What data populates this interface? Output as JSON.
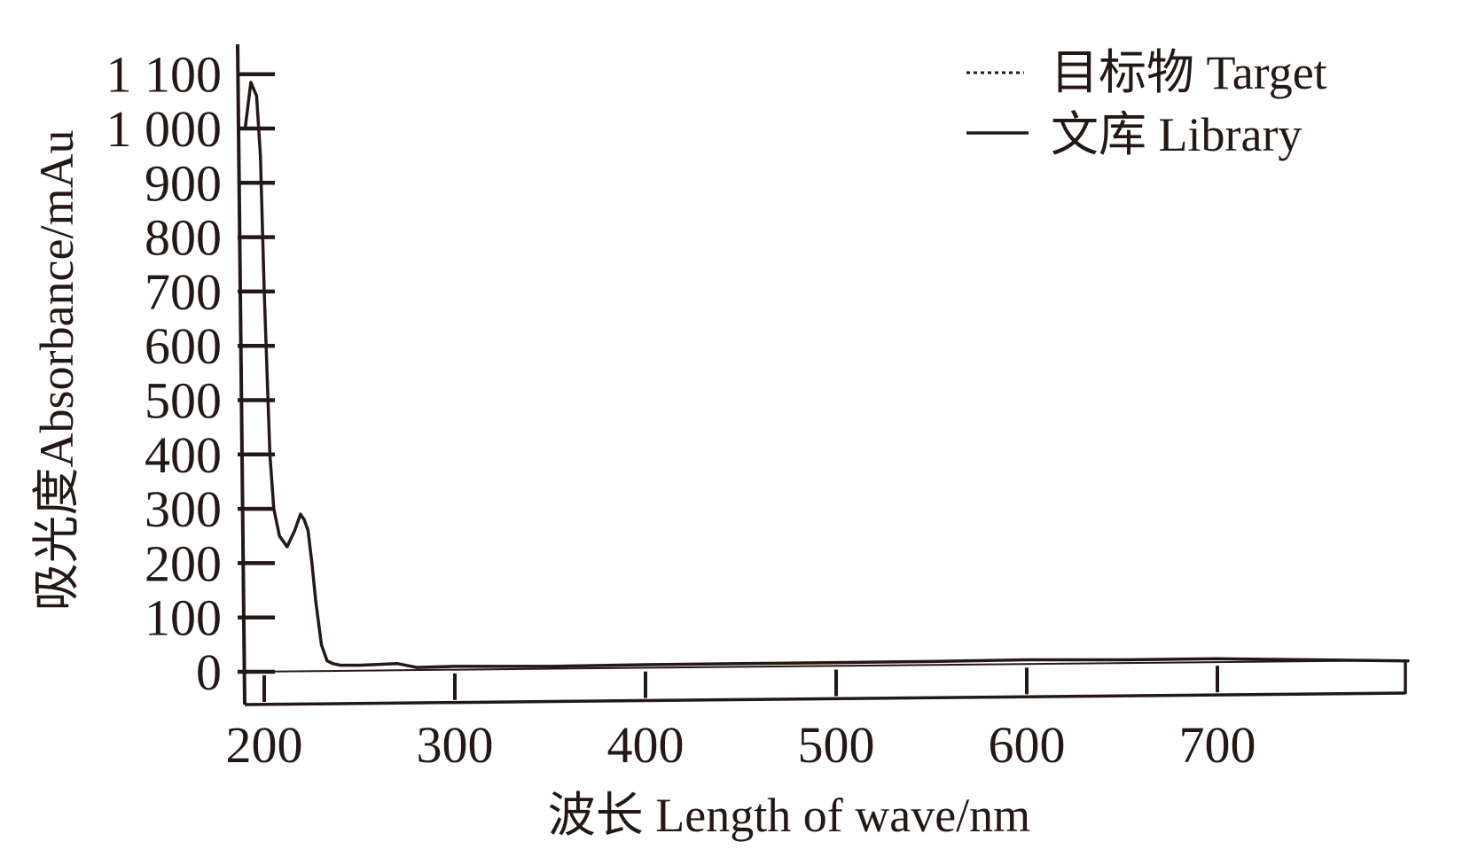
{
  "chart_data": {
    "type": "line",
    "xlabel": "波长 Length of wave/nm",
    "ylabel": "吸光度Absorbance/mAu",
    "xlim": [
      190,
      800
    ],
    "ylim": [
      -50,
      1150
    ],
    "x_ticks": [
      "200",
      "300",
      "400",
      "500",
      "600",
      "700"
    ],
    "y_ticks": [
      "0",
      "100",
      "200",
      "300",
      "400",
      "500",
      "600",
      "700",
      "800",
      "900",
      "1 000",
      "1 100"
    ],
    "legend_position": "top-right",
    "series": [
      {
        "name": "目标物 Target",
        "style": "dotted",
        "color": "#231815",
        "x": [
          190,
          193,
          196,
          198,
          200,
          203,
          205,
          208,
          212,
          216,
          219,
          221,
          223,
          225,
          227,
          230,
          233,
          236,
          240,
          250,
          270,
          280,
          300,
          350,
          400,
          450,
          500,
          550,
          600,
          650,
          700,
          750,
          800
        ],
        "y": [
          1000,
          1085,
          1060,
          950,
          700,
          400,
          300,
          250,
          230,
          260,
          290,
          280,
          260,
          200,
          130,
          50,
          20,
          15,
          12,
          12,
          15,
          8,
          10,
          10,
          13,
          15,
          17,
          19,
          22,
          22,
          24,
          22,
          20
        ]
      },
      {
        "name": "文库 Library",
        "style": "solid",
        "color": "#231815",
        "x": [
          190,
          193,
          196,
          198,
          200,
          203,
          205,
          208,
          212,
          216,
          219,
          221,
          223,
          225,
          227,
          230,
          233,
          236,
          240,
          250,
          270,
          280,
          300,
          350,
          400,
          450,
          500,
          550,
          600,
          650,
          700,
          750,
          800
        ],
        "y": [
          1000,
          1085,
          1060,
          950,
          700,
          400,
          300,
          250,
          230,
          260,
          290,
          280,
          260,
          200,
          130,
          50,
          20,
          15,
          12,
          12,
          15,
          8,
          10,
          10,
          13,
          15,
          17,
          19,
          22,
          22,
          24,
          22,
          20
        ]
      }
    ]
  }
}
